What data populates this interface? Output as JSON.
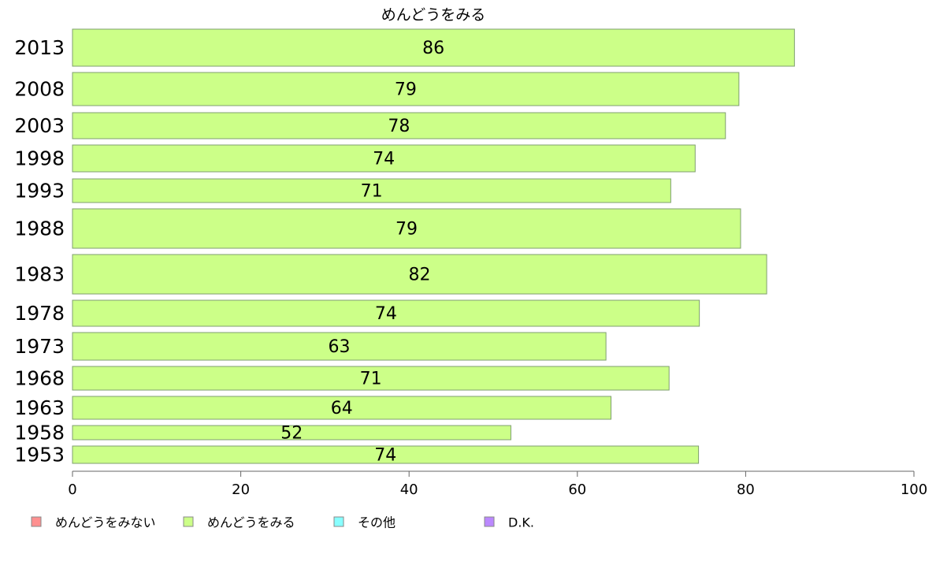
{
  "chart_data": {
    "type": "bar",
    "orientation": "horizontal",
    "title": "めんどうをみる",
    "categories": [
      "2013",
      "2008",
      "2003",
      "1998",
      "1993",
      "1988",
      "1983",
      "1978",
      "1973",
      "1968",
      "1963",
      "1958",
      "1953"
    ],
    "series": [
      {
        "name": "めんどうをみる",
        "color": "#ccff88",
        "values": [
          86,
          79,
          78,
          74,
          71,
          79,
          82,
          74,
          63,
          71,
          64,
          52,
          74
        ],
        "bar_ends": [
          85.8,
          79.2,
          77.6,
          74.0,
          71.1,
          79.4,
          82.5,
          74.5,
          63.4,
          70.9,
          64.0,
          52.1,
          74.4
        ]
      }
    ],
    "xlim": [
      0,
      100
    ],
    "xticks": [
      0,
      20,
      40,
      60,
      80,
      100
    ],
    "legend": {
      "position": "bottom",
      "entries": [
        {
          "label": "めんどうをみない",
          "color": "#ff9090"
        },
        {
          "label": "めんどうをみる",
          "color": "#ccff88"
        },
        {
          "label": "その他",
          "color": "#88ffff"
        },
        {
          "label": "D.K.",
          "color": "#bb88ff"
        }
      ]
    }
  }
}
